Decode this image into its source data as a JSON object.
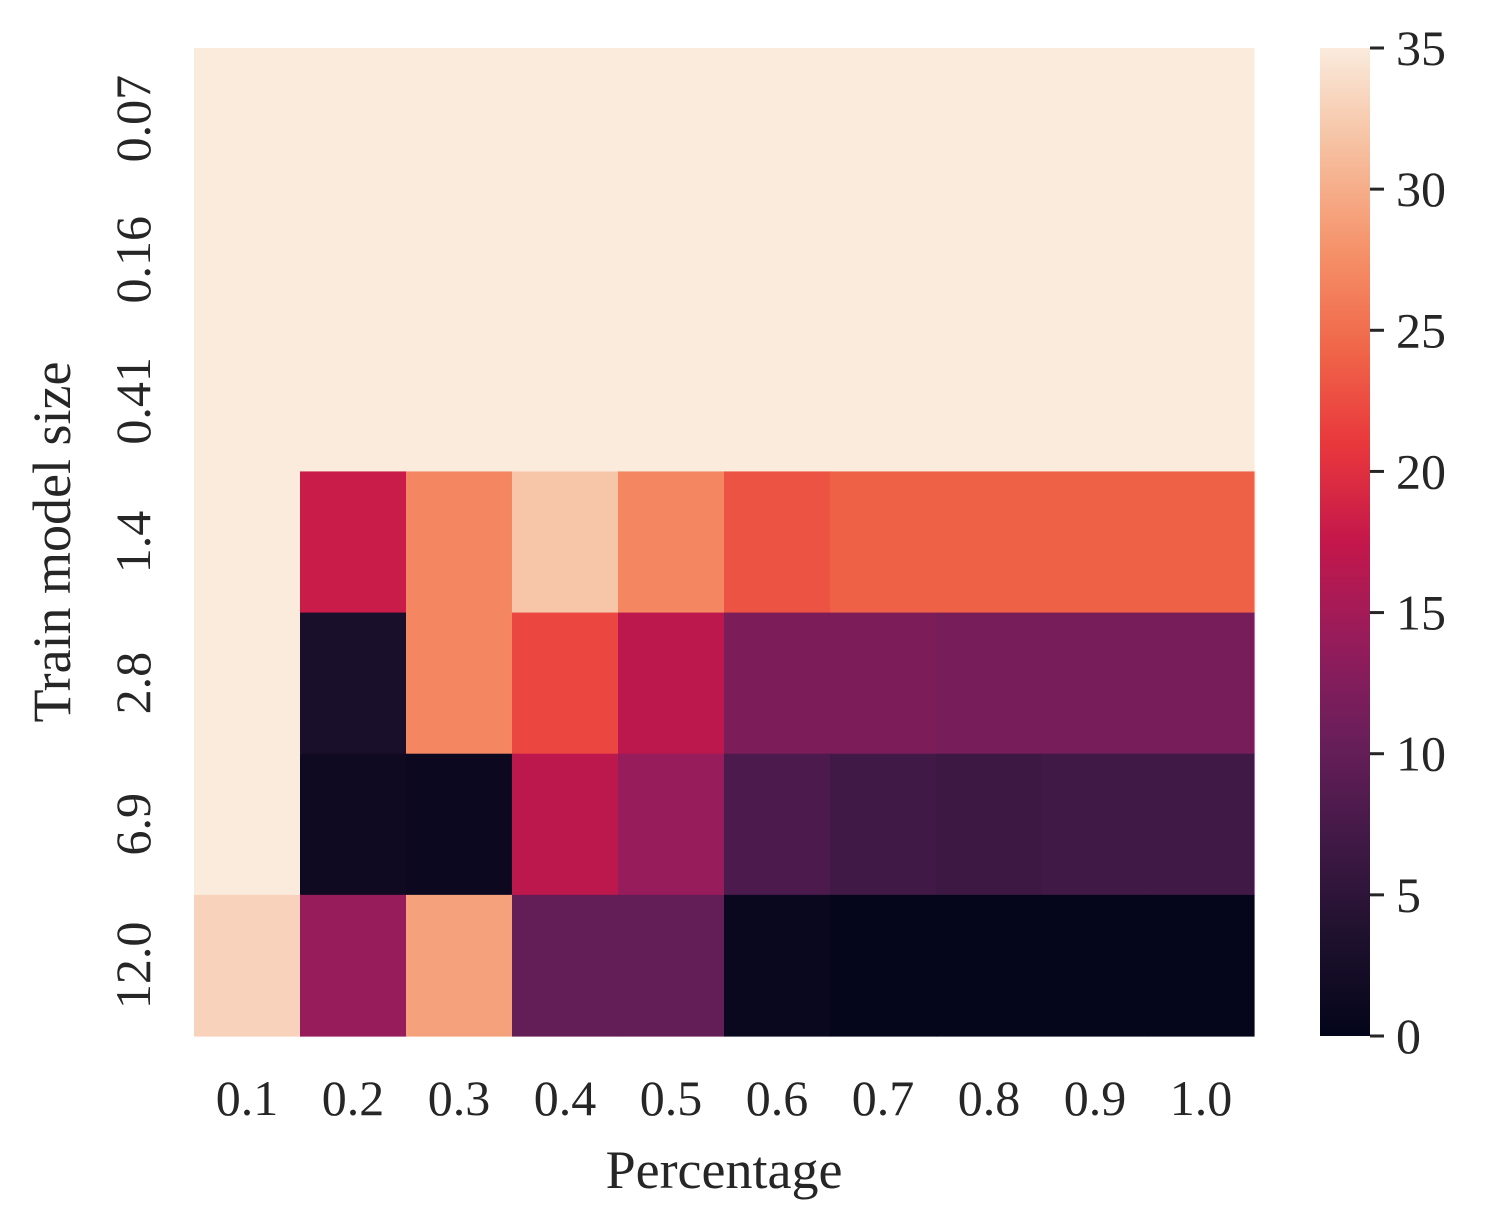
{
  "chart_data": {
    "type": "heatmap",
    "title": "",
    "xlabel": "Percentage",
    "ylabel": "Train model size",
    "x_categories": [
      "0.1",
      "0.2",
      "0.3",
      "0.4",
      "0.5",
      "0.6",
      "0.7",
      "0.8",
      "0.9",
      "1.0"
    ],
    "y_categories": [
      "0.07",
      "0.16",
      "0.41",
      "1.4",
      "2.8",
      "6.9",
      "12.0"
    ],
    "values": [
      [
        35,
        35,
        35,
        35,
        35,
        35,
        35,
        35,
        35,
        35
      ],
      [
        35,
        35,
        35,
        35,
        35,
        35,
        35,
        35,
        35,
        35
      ],
      [
        35,
        35,
        35,
        35,
        35,
        35,
        35,
        35,
        35,
        35
      ],
      [
        35,
        18,
        27,
        32,
        27,
        23,
        24,
        24,
        24,
        24
      ],
      [
        35,
        3,
        27,
        22,
        17,
        12,
        12,
        11.5,
        11.5,
        11.5
      ],
      [
        35,
        1.5,
        1,
        17,
        14,
        8,
        7,
        6.5,
        7,
        7
      ],
      [
        33,
        14,
        29,
        10,
        10,
        0.8,
        0.3,
        0.2,
        0.3,
        0.3
      ]
    ],
    "colorbar": {
      "min": 0,
      "max": 35,
      "ticks": [
        "0",
        "5",
        "10",
        "15",
        "20",
        "25",
        "30",
        "35"
      ],
      "colormap": "rocket"
    },
    "grid": false
  }
}
